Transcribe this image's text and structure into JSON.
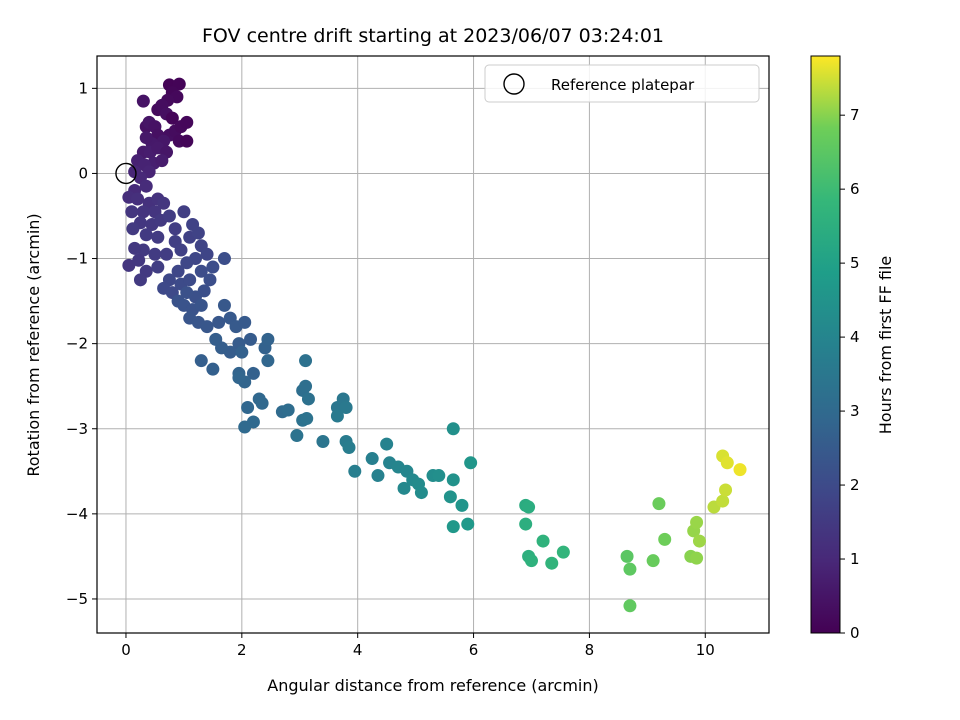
{
  "chart_data": {
    "type": "scatter",
    "title": "FOV centre drift starting at 2023/06/07 03:24:01",
    "xlabel": "Angular distance from reference (arcmin)",
    "ylabel": "Rotation from reference (arcmin)",
    "xlim": [
      -0.5,
      11.1
    ],
    "ylim": [
      -5.4,
      1.38
    ],
    "xticks": [
      0,
      2,
      4,
      6,
      8,
      10
    ],
    "yticks": [
      1,
      0,
      -1,
      -2,
      -3,
      -4,
      -5
    ],
    "grid": true,
    "legend": {
      "position": "top-right",
      "entries": [
        "Reference platepar"
      ]
    },
    "reference_point": {
      "x": 0,
      "y": 0
    },
    "colorbar": {
      "label": "Hours from first FF file",
      "colormap": "viridis",
      "range": [
        0,
        7.8
      ],
      "ticks": [
        0,
        1,
        2,
        3,
        4,
        5,
        6,
        7
      ]
    },
    "points": [
      {
        "x": 0.75,
        "y": 1.04,
        "c": 0.05
      },
      {
        "x": 0.92,
        "y": 1.05,
        "c": 0.08
      },
      {
        "x": 0.8,
        "y": 0.95,
        "c": 0.12
      },
      {
        "x": 0.88,
        "y": 0.9,
        "c": 0.18
      },
      {
        "x": 0.72,
        "y": 0.86,
        "c": 0.22
      },
      {
        "x": 0.55,
        "y": 0.75,
        "c": 0.25
      },
      {
        "x": 0.62,
        "y": 0.8,
        "c": 0.3
      },
      {
        "x": 0.7,
        "y": 0.7,
        "c": 0.35
      },
      {
        "x": 0.8,
        "y": 0.65,
        "c": 0.1
      },
      {
        "x": 0.35,
        "y": 0.55,
        "c": 0.4
      },
      {
        "x": 0.3,
        "y": 0.85,
        "c": 0.45
      },
      {
        "x": 0.4,
        "y": 0.6,
        "c": 0.5
      },
      {
        "x": 0.5,
        "y": 0.55,
        "c": 0.42
      },
      {
        "x": 0.55,
        "y": 0.45,
        "c": 0.38
      },
      {
        "x": 0.75,
        "y": 0.45,
        "c": 0.32
      },
      {
        "x": 0.85,
        "y": 0.5,
        "c": 0.28
      },
      {
        "x": 0.95,
        "y": 0.55,
        "c": 0.2
      },
      {
        "x": 1.05,
        "y": 0.6,
        "c": 0.15
      },
      {
        "x": 0.92,
        "y": 0.38,
        "c": 0.22
      },
      {
        "x": 1.05,
        "y": 0.38,
        "c": 0.12
      },
      {
        "x": 0.65,
        "y": 0.38,
        "c": 0.55
      },
      {
        "x": 0.45,
        "y": 0.35,
        "c": 0.6
      },
      {
        "x": 0.35,
        "y": 0.42,
        "c": 0.58
      },
      {
        "x": 0.3,
        "y": 0.25,
        "c": 0.65
      },
      {
        "x": 0.42,
        "y": 0.25,
        "c": 0.7
      },
      {
        "x": 0.55,
        "y": 0.3,
        "c": 0.62
      },
      {
        "x": 0.7,
        "y": 0.25,
        "c": 0.52
      },
      {
        "x": 0.48,
        "y": 0.12,
        "c": 0.75
      },
      {
        "x": 0.62,
        "y": 0.15,
        "c": 0.68
      },
      {
        "x": 0.2,
        "y": 0.15,
        "c": 0.8
      },
      {
        "x": 0.32,
        "y": 0.1,
        "c": 0.85
      },
      {
        "x": 0.4,
        "y": 0.02,
        "c": 0.9
      },
      {
        "x": 0.15,
        "y": 0.02,
        "c": 0.95
      },
      {
        "x": 0.25,
        "y": -0.05,
        "c": 1.0
      },
      {
        "x": 0.15,
        "y": -0.2,
        "c": 1.05
      },
      {
        "x": 0.35,
        "y": -0.15,
        "c": 1.1
      },
      {
        "x": 0.05,
        "y": -0.28,
        "c": 1.15
      },
      {
        "x": 0.2,
        "y": -0.3,
        "c": 1.2
      },
      {
        "x": 0.4,
        "y": -0.35,
        "c": 1.25
      },
      {
        "x": 0.55,
        "y": -0.3,
        "c": 1.3
      },
      {
        "x": 0.3,
        "y": -0.45,
        "c": 1.32
      },
      {
        "x": 0.5,
        "y": -0.45,
        "c": 1.35
      },
      {
        "x": 0.65,
        "y": -0.35,
        "c": 1.38
      },
      {
        "x": 0.1,
        "y": -0.45,
        "c": 1.4
      },
      {
        "x": 0.25,
        "y": -0.58,
        "c": 1.42
      },
      {
        "x": 0.45,
        "y": -0.6,
        "c": 1.45
      },
      {
        "x": 0.6,
        "y": -0.55,
        "c": 1.48
      },
      {
        "x": 0.12,
        "y": -0.65,
        "c": 1.5
      },
      {
        "x": 0.35,
        "y": -0.72,
        "c": 1.52
      },
      {
        "x": 0.55,
        "y": -0.75,
        "c": 1.55
      },
      {
        "x": 0.75,
        "y": -0.5,
        "c": 1.58
      },
      {
        "x": 0.85,
        "y": -0.65,
        "c": 1.6
      },
      {
        "x": 1.0,
        "y": -0.45,
        "c": 1.62
      },
      {
        "x": 0.3,
        "y": -0.9,
        "c": 1.5
      },
      {
        "x": 0.15,
        "y": -0.88,
        "c": 1.45
      },
      {
        "x": 0.05,
        "y": -1.08,
        "c": 1.4
      },
      {
        "x": 0.22,
        "y": -1.02,
        "c": 1.42
      },
      {
        "x": 0.35,
        "y": -1.15,
        "c": 1.48
      },
      {
        "x": 0.25,
        "y": -1.25,
        "c": 1.5
      },
      {
        "x": 0.5,
        "y": -0.95,
        "c": 1.55
      },
      {
        "x": 0.7,
        "y": -0.95,
        "c": 1.6
      },
      {
        "x": 0.55,
        "y": -1.1,
        "c": 1.62
      },
      {
        "x": 0.85,
        "y": -0.8,
        "c": 1.65
      },
      {
        "x": 0.95,
        "y": -0.9,
        "c": 1.7
      },
      {
        "x": 1.1,
        "y": -0.75,
        "c": 1.72
      },
      {
        "x": 1.15,
        "y": -0.6,
        "c": 1.75
      },
      {
        "x": 1.25,
        "y": -0.7,
        "c": 1.78
      },
      {
        "x": 1.3,
        "y": -0.85,
        "c": 1.8
      },
      {
        "x": 1.4,
        "y": -0.95,
        "c": 1.82
      },
      {
        "x": 1.2,
        "y": -1.0,
        "c": 1.85
      },
      {
        "x": 1.05,
        "y": -1.05,
        "c": 1.88
      },
      {
        "x": 0.9,
        "y": -1.15,
        "c": 1.9
      },
      {
        "x": 0.75,
        "y": -1.25,
        "c": 1.92
      },
      {
        "x": 0.65,
        "y": -1.35,
        "c": 1.95
      },
      {
        "x": 0.8,
        "y": -1.4,
        "c": 1.98
      },
      {
        "x": 0.95,
        "y": -1.3,
        "c": 2.0
      },
      {
        "x": 1.1,
        "y": -1.25,
        "c": 2.02
      },
      {
        "x": 1.3,
        "y": -1.15,
        "c": 2.05
      },
      {
        "x": 1.5,
        "y": -1.1,
        "c": 2.08
      },
      {
        "x": 1.7,
        "y": -1.0,
        "c": 2.1
      },
      {
        "x": 1.45,
        "y": -1.25,
        "c": 2.12
      },
      {
        "x": 1.35,
        "y": -1.38,
        "c": 2.15
      },
      {
        "x": 1.2,
        "y": -1.45,
        "c": 2.18
      },
      {
        "x": 1.05,
        "y": -1.4,
        "c": 2.2
      },
      {
        "x": 0.9,
        "y": -1.5,
        "c": 2.22
      },
      {
        "x": 1.0,
        "y": -1.55,
        "c": 2.25
      },
      {
        "x": 1.15,
        "y": -1.6,
        "c": 2.28
      },
      {
        "x": 1.3,
        "y": -1.55,
        "c": 2.3
      },
      {
        "x": 1.1,
        "y": -1.7,
        "c": 2.32
      },
      {
        "x": 1.25,
        "y": -1.75,
        "c": 2.35
      },
      {
        "x": 1.4,
        "y": -1.8,
        "c": 2.38
      },
      {
        "x": 1.6,
        "y": -1.75,
        "c": 2.4
      },
      {
        "x": 1.7,
        "y": -1.55,
        "c": 2.42
      },
      {
        "x": 1.8,
        "y": -1.7,
        "c": 2.45
      },
      {
        "x": 1.9,
        "y": -1.8,
        "c": 2.48
      },
      {
        "x": 2.05,
        "y": -1.75,
        "c": 2.5
      },
      {
        "x": 2.15,
        "y": -1.95,
        "c": 2.52
      },
      {
        "x": 1.95,
        "y": -2.0,
        "c": 2.55
      },
      {
        "x": 1.8,
        "y": -2.1,
        "c": 2.58
      },
      {
        "x": 1.65,
        "y": -2.05,
        "c": 2.6
      },
      {
        "x": 1.55,
        "y": -1.95,
        "c": 2.62
      },
      {
        "x": 1.3,
        "y": -2.2,
        "c": 2.65
      },
      {
        "x": 1.5,
        "y": -2.3,
        "c": 2.68
      },
      {
        "x": 2.0,
        "y": -2.1,
        "c": 2.7
      },
      {
        "x": 2.2,
        "y": -2.35,
        "c": 2.72
      },
      {
        "x": 2.4,
        "y": -2.05,
        "c": 2.75
      },
      {
        "x": 2.45,
        "y": -1.95,
        "c": 2.78
      },
      {
        "x": 1.95,
        "y": -2.35,
        "c": 2.8
      },
      {
        "x": 2.05,
        "y": -2.45,
        "c": 2.82
      },
      {
        "x": 1.95,
        "y": -2.4,
        "c": 2.85
      },
      {
        "x": 2.45,
        "y": -2.2,
        "c": 2.88
      },
      {
        "x": 2.1,
        "y": -2.75,
        "c": 2.9
      },
      {
        "x": 2.3,
        "y": -2.65,
        "c": 2.92
      },
      {
        "x": 2.35,
        "y": -2.7,
        "c": 2.95
      },
      {
        "x": 2.2,
        "y": -2.92,
        "c": 2.98
      },
      {
        "x": 2.05,
        "y": -2.98,
        "c": 3.0
      },
      {
        "x": 2.7,
        "y": -2.8,
        "c": 3.05
      },
      {
        "x": 2.8,
        "y": -2.78,
        "c": 3.1
      },
      {
        "x": 3.05,
        "y": -2.55,
        "c": 3.15
      },
      {
        "x": 3.1,
        "y": -2.5,
        "c": 3.2
      },
      {
        "x": 3.15,
        "y": -2.65,
        "c": 3.25
      },
      {
        "x": 3.1,
        "y": -2.2,
        "c": 3.28
      },
      {
        "x": 3.05,
        "y": -2.9,
        "c": 3.3
      },
      {
        "x": 3.12,
        "y": -2.88,
        "c": 3.32
      },
      {
        "x": 2.95,
        "y": -3.08,
        "c": 3.35
      },
      {
        "x": 3.4,
        "y": -3.15,
        "c": 3.4
      },
      {
        "x": 3.65,
        "y": -2.75,
        "c": 3.45
      },
      {
        "x": 3.75,
        "y": -2.65,
        "c": 3.5
      },
      {
        "x": 3.8,
        "y": -2.75,
        "c": 3.55
      },
      {
        "x": 3.65,
        "y": -2.85,
        "c": 3.6
      },
      {
        "x": 3.8,
        "y": -3.15,
        "c": 3.65
      },
      {
        "x": 3.85,
        "y": -3.22,
        "c": 3.7
      },
      {
        "x": 3.95,
        "y": -3.5,
        "c": 3.75
      },
      {
        "x": 4.25,
        "y": -3.35,
        "c": 3.8
      },
      {
        "x": 4.35,
        "y": -3.55,
        "c": 3.85
      },
      {
        "x": 4.5,
        "y": -3.18,
        "c": 3.9
      },
      {
        "x": 4.55,
        "y": -3.4,
        "c": 3.95
      },
      {
        "x": 4.7,
        "y": -3.45,
        "c": 4.0
      },
      {
        "x": 4.85,
        "y": -3.5,
        "c": 4.05
      },
      {
        "x": 4.8,
        "y": -3.7,
        "c": 4.1
      },
      {
        "x": 4.95,
        "y": -3.6,
        "c": 4.15
      },
      {
        "x": 5.05,
        "y": -3.65,
        "c": 4.2
      },
      {
        "x": 5.1,
        "y": -3.75,
        "c": 4.25
      },
      {
        "x": 5.3,
        "y": -3.55,
        "c": 4.3
      },
      {
        "x": 5.4,
        "y": -3.55,
        "c": 4.35
      },
      {
        "x": 5.65,
        "y": -3.0,
        "c": 4.4
      },
      {
        "x": 5.65,
        "y": -3.6,
        "c": 4.45
      },
      {
        "x": 5.6,
        "y": -3.8,
        "c": 4.5
      },
      {
        "x": 5.8,
        "y": -3.9,
        "c": 4.55
      },
      {
        "x": 5.95,
        "y": -3.4,
        "c": 4.6
      },
      {
        "x": 5.65,
        "y": -4.15,
        "c": 4.65
      },
      {
        "x": 5.9,
        "y": -4.12,
        "c": 4.7
      },
      {
        "x": 6.9,
        "y": -3.9,
        "c": 5.4
      },
      {
        "x": 6.95,
        "y": -3.92,
        "c": 5.45
      },
      {
        "x": 6.9,
        "y": -4.12,
        "c": 5.5
      },
      {
        "x": 6.95,
        "y": -4.5,
        "c": 5.55
      },
      {
        "x": 7.0,
        "y": -4.55,
        "c": 5.6
      },
      {
        "x": 7.2,
        "y": -4.32,
        "c": 5.65
      },
      {
        "x": 7.35,
        "y": -4.58,
        "c": 5.7
      },
      {
        "x": 7.55,
        "y": -4.45,
        "c": 5.75
      },
      {
        "x": 8.65,
        "y": -4.5,
        "c": 6.5
      },
      {
        "x": 8.7,
        "y": -4.65,
        "c": 6.55
      },
      {
        "x": 8.7,
        "y": -5.08,
        "c": 6.6
      },
      {
        "x": 9.1,
        "y": -4.55,
        "c": 6.7
      },
      {
        "x": 9.2,
        "y": -3.88,
        "c": 6.75
      },
      {
        "x": 9.3,
        "y": -4.3,
        "c": 6.8
      },
      {
        "x": 9.75,
        "y": -4.5,
        "c": 7.0
      },
      {
        "x": 9.85,
        "y": -4.52,
        "c": 7.05
      },
      {
        "x": 9.8,
        "y": -4.2,
        "c": 7.1
      },
      {
        "x": 9.85,
        "y": -4.1,
        "c": 7.12
      },
      {
        "x": 9.9,
        "y": -4.32,
        "c": 7.15
      },
      {
        "x": 10.15,
        "y": -3.92,
        "c": 7.35
      },
      {
        "x": 10.3,
        "y": -3.85,
        "c": 7.4
      },
      {
        "x": 10.35,
        "y": -3.72,
        "c": 7.45
      },
      {
        "x": 10.3,
        "y": -3.32,
        "c": 7.55
      },
      {
        "x": 10.38,
        "y": -3.4,
        "c": 7.6
      },
      {
        "x": 10.6,
        "y": -3.48,
        "c": 7.7
      }
    ]
  }
}
